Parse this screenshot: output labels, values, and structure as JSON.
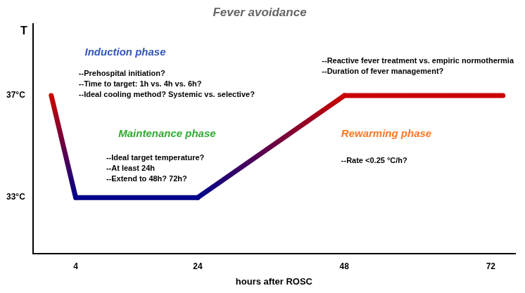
{
  "chart_data": {
    "type": "line",
    "title": "Fever avoidance",
    "xlabel": "hours after ROSC",
    "ylabel": "T",
    "x": [
      0,
      4,
      24,
      48,
      74
    ],
    "values": [
      37.0,
      33.0,
      33.0,
      37.0,
      37.0
    ],
    "colors": [
      "#cc0000",
      "#00008b",
      "#00008b",
      "#cc0000",
      "#cc0000"
    ],
    "xlim": [
      -3,
      76
    ],
    "ylim": [
      30.8,
      39.8
    ],
    "xticks": [
      4,
      24,
      48,
      72
    ],
    "yticks": [
      {
        "value": 33.0,
        "label": "33°C"
      },
      {
        "value": 37.0,
        "label": "37°C"
      }
    ],
    "grid": false,
    "annotations": [
      {
        "text": "Induction phase",
        "color": "#3355bb"
      },
      {
        "text": "--Prehospital initiation?\n--Time to target: 1h vs. 4h vs. 6h?\n--Ideal cooling method? Systemic vs. selective?",
        "color": "#000000"
      },
      {
        "text": "Maintenance phase",
        "color": "#33aa33"
      },
      {
        "text": "--Ideal target temperature?\n--At least 24h\n--Extend to 48h? 72h?",
        "color": "#000000"
      },
      {
        "text": "Rewarming phase",
        "color": "#ff7722"
      },
      {
        "text": "--Rate <0.25 °C/h?",
        "color": "#000000"
      },
      {
        "text": "--Reactive fever treatment vs. empiric normothermia\n--Duration of fever management?",
        "color": "#000000"
      }
    ]
  }
}
